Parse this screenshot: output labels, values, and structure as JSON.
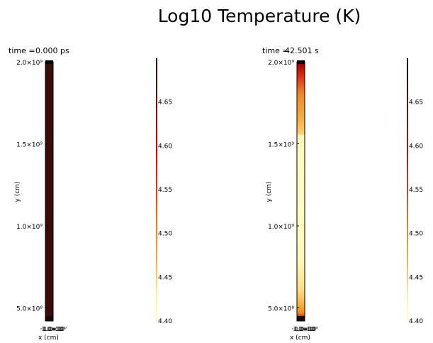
{
  "title": "Log10 Temperature (K)",
  "chart_data": [
    {
      "type": "heatmap",
      "time_label": "time =",
      "time_value": "0.000 ps",
      "xlabel": "x (cm)",
      "ylabel": "y (cm)",
      "ylim": [
        420000000,
        2000000000
      ],
      "y_ticks": [
        {
          "value": 2000000000,
          "label": "2.0×10⁹"
        },
        {
          "value": 1500000000,
          "label": "1.5×10⁹"
        },
        {
          "value": 1000000000,
          "label": "1.0×10⁹"
        },
        {
          "value": 500000000,
          "label": "5.0×10⁸"
        }
      ],
      "x_ticks_overlap_text": "·1.0×10⁷",
      "value_profile": [
        {
          "y": 2000000000,
          "log10_T": 4.7
        },
        {
          "y": 420000000,
          "log10_T": 4.7
        }
      ],
      "bottom_cap": {
        "y_from": 420000000,
        "y_to": 450000000,
        "log10_T": 4.7
      }
    },
    {
      "type": "heatmap",
      "time_label": "time =",
      "time_value": "42.501 s",
      "xlabel": "x (cm)",
      "ylabel": "y (cm)",
      "ylim": [
        420000000,
        2000000000
      ],
      "y_ticks": [
        {
          "value": 2000000000,
          "label": "2.0×10⁹"
        },
        {
          "value": 1500000000,
          "label": "1.5×10⁹"
        },
        {
          "value": 1000000000,
          "label": "1.0×10⁹"
        },
        {
          "value": 500000000,
          "label": "5.0×10⁸"
        }
      ],
      "x_ticks_overlap_text": "·1.0×10⁷",
      "value_profile": [
        {
          "y": 2000000000,
          "log10_T": 4.63
        },
        {
          "y": 1930000000,
          "log10_T": 4.57
        },
        {
          "y": 1800000000,
          "log10_T": 4.5
        },
        {
          "y": 1650000000,
          "log10_T": 4.47
        },
        {
          "y": 1560000000,
          "log10_T": 4.45
        },
        {
          "y": 1550000000,
          "log10_T": 4.41
        },
        {
          "y": 1100000000,
          "log10_T": 4.405
        },
        {
          "y": 800000000,
          "log10_T": 4.41
        },
        {
          "y": 620000000,
          "log10_T": 4.44
        },
        {
          "y": 520000000,
          "log10_T": 4.47
        },
        {
          "y": 470000000,
          "log10_T": 4.5
        },
        {
          "y": 440000000,
          "log10_T": 4.58
        },
        {
          "y": 420000000,
          "log10_T": 4.7
        }
      ],
      "bottom_cap": {
        "y_from": 420000000,
        "y_to": 450000000,
        "log10_T": 4.7
      }
    }
  ],
  "colorbar": {
    "label_min": 4.4,
    "label_max": 4.7,
    "ticks": [
      {
        "value": 4.65,
        "label": "4.65"
      },
      {
        "value": 4.6,
        "label": "4.60"
      },
      {
        "value": 4.55,
        "label": "4.55"
      },
      {
        "value": 4.5,
        "label": "4.50"
      },
      {
        "value": 4.45,
        "label": "4.45"
      },
      {
        "value": 4.4,
        "label": "4.40"
      }
    ],
    "colormap": [
      {
        "v": 4.4,
        "color": "#ffffc8"
      },
      {
        "v": 4.43,
        "color": "#fff0a0"
      },
      {
        "v": 4.47,
        "color": "#f5b040"
      },
      {
        "v": 4.5,
        "color": "#ee8a2a"
      },
      {
        "v": 4.55,
        "color": "#e63a18"
      },
      {
        "v": 4.6,
        "color": "#c40000"
      },
      {
        "v": 4.65,
        "color": "#5a0000"
      },
      {
        "v": 4.7,
        "color": "#000000"
      }
    ],
    "dark_fill": "#3a0c0c"
  }
}
